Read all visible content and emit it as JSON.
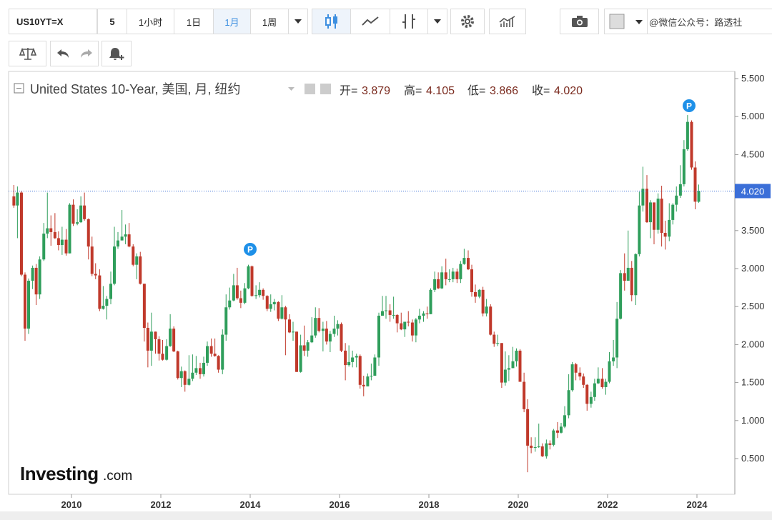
{
  "toolbar": {
    "symbol": "US10YT=X",
    "intervals": [
      "5",
      "1小时",
      "1日",
      "1月",
      "1周"
    ],
    "watermark": "@微信公众号：路透社"
  },
  "chart_data": {
    "type": "candlestick",
    "title": "United States 10-Year, 美国, 月, 纽约",
    "legend_labels": [
      "开=",
      "高=",
      "低=",
      "收="
    ],
    "legend_values": [
      "3.879",
      "4.105",
      "3.866",
      "4.020"
    ],
    "event_labels": [
      "P",
      "P"
    ],
    "logo": "Investing",
    "logo_suffix": ".com",
    "up_color": "#2f9e5b",
    "down_color": "#c0392b",
    "price_line_color": "#3b6fd8",
    "xlim": [
      2008.592,
      2024.848
    ],
    "xticks": [
      2010,
      2012,
      2014,
      2016,
      2018,
      2020,
      2022,
      2024
    ],
    "ylim": [
      0.03,
      5.594
    ],
    "yticks": [
      {
        "value": 0.5,
        "label": "0.500"
      },
      {
        "value": 1,
        "label": "1.000"
      },
      {
        "value": 1.5,
        "label": "1.500"
      },
      {
        "value": 2,
        "label": "2.000"
      },
      {
        "value": 2.5,
        "label": "2.500"
      },
      {
        "value": 3,
        "label": "3.000"
      },
      {
        "value": 3.5,
        "label": "3.500"
      },
      {
        "value": 4,
        "label": "4.000"
      },
      {
        "value": 4.5,
        "label": "4.500"
      },
      {
        "value": 5,
        "label": "5.000"
      },
      {
        "value": 5.5,
        "label": "5.500"
      }
    ],
    "x": [
      2008.71,
      2008.79,
      2008.88,
      2008.96,
      2009.04,
      2009.13,
      2009.21,
      2009.29,
      2009.38,
      2009.46,
      2009.54,
      2009.63,
      2009.71,
      2009.79,
      2009.88,
      2009.96,
      2010.04,
      2010.13,
      2010.21,
      2010.29,
      2010.38,
      2010.46,
      2010.54,
      2010.63,
      2010.71,
      2010.79,
      2010.88,
      2010.96,
      2011.04,
      2011.13,
      2011.21,
      2011.29,
      2011.38,
      2011.46,
      2011.54,
      2011.63,
      2011.71,
      2011.79,
      2011.88,
      2011.96,
      2012.04,
      2012.13,
      2012.21,
      2012.29,
      2012.38,
      2012.46,
      2012.54,
      2012.63,
      2012.71,
      2012.79,
      2012.88,
      2012.96,
      2013.04,
      2013.13,
      2013.21,
      2013.29,
      2013.38,
      2013.46,
      2013.54,
      2013.63,
      2013.71,
      2013.79,
      2013.88,
      2013.96,
      2014.04,
      2014.13,
      2014.21,
      2014.29,
      2014.38,
      2014.46,
      2014.54,
      2014.63,
      2014.71,
      2014.79,
      2014.88,
      2014.96,
      2015.04,
      2015.13,
      2015.21,
      2015.29,
      2015.38,
      2015.46,
      2015.54,
      2015.63,
      2015.71,
      2015.79,
      2015.88,
      2015.96,
      2016.04,
      2016.13,
      2016.21,
      2016.29,
      2016.38,
      2016.46,
      2016.54,
      2016.63,
      2016.71,
      2016.79,
      2016.88,
      2016.96,
      2017.04,
      2017.13,
      2017.21,
      2017.29,
      2017.38,
      2017.46,
      2017.54,
      2017.63,
      2017.71,
      2017.79,
      2017.88,
      2017.96,
      2018.04,
      2018.13,
      2018.21,
      2018.29,
      2018.38,
      2018.46,
      2018.54,
      2018.63,
      2018.71,
      2018.79,
      2018.88,
      2018.96,
      2019.04,
      2019.13,
      2019.21,
      2019.29,
      2019.38,
      2019.46,
      2019.54,
      2019.63,
      2019.71,
      2019.79,
      2019.88,
      2019.96,
      2020.04,
      2020.13,
      2020.21,
      2020.29,
      2020.38,
      2020.46,
      2020.54,
      2020.63,
      2020.71,
      2020.79,
      2020.88,
      2020.96,
      2021.04,
      2021.13,
      2021.21,
      2021.29,
      2021.38,
      2021.46,
      2021.54,
      2021.63,
      2021.71,
      2021.79,
      2021.88,
      2021.96,
      2022.04,
      2022.13,
      2022.21,
      2022.29,
      2022.38,
      2022.46,
      2022.54,
      2022.63,
      2022.71,
      2022.79,
      2022.88,
      2022.96,
      2023.04,
      2023.13,
      2023.21,
      2023.29,
      2023.38,
      2023.46,
      2023.54,
      2023.63,
      2023.71,
      2023.79,
      2023.88,
      2023.96,
      2024.04
    ],
    "candles": [
      [
        3.95,
        4.1,
        3.8,
        3.83
      ],
      [
        3.83,
        4.08,
        3.4,
        4.0
      ],
      [
        4.0,
        4.02,
        2.9,
        2.92
      ],
      [
        2.92,
        2.95,
        2.05,
        2.21
      ],
      [
        2.21,
        2.87,
        2.14,
        2.84
      ],
      [
        2.84,
        3.04,
        2.73,
        3.01
      ],
      [
        3.01,
        3.06,
        2.52,
        2.66
      ],
      [
        2.66,
        3.16,
        2.6,
        3.12
      ],
      [
        3.12,
        3.6,
        3.1,
        3.46
      ],
      [
        3.46,
        4.0,
        3.4,
        3.53
      ],
      [
        3.53,
        3.7,
        3.3,
        3.48
      ],
      [
        3.48,
        3.73,
        3.39,
        3.4
      ],
      [
        3.4,
        3.49,
        3.24,
        3.31
      ],
      [
        3.31,
        3.55,
        3.18,
        3.38
      ],
      [
        3.38,
        3.52,
        3.17,
        3.2
      ],
      [
        3.2,
        3.86,
        3.2,
        3.84
      ],
      [
        3.84,
        3.91,
        3.56,
        3.59
      ],
      [
        3.59,
        3.78,
        3.57,
        3.61
      ],
      [
        3.61,
        3.95,
        3.6,
        3.83
      ],
      [
        3.83,
        4.0,
        3.63,
        3.65
      ],
      [
        3.65,
        3.66,
        3.12,
        3.29
      ],
      [
        3.29,
        3.42,
        2.9,
        2.93
      ],
      [
        2.93,
        3.07,
        2.86,
        2.91
      ],
      [
        2.91,
        2.99,
        2.44,
        2.47
      ],
      [
        2.47,
        2.77,
        2.46,
        2.51
      ],
      [
        2.51,
        2.64,
        2.33,
        2.6
      ],
      [
        2.6,
        2.96,
        2.53,
        2.8
      ],
      [
        2.8,
        3.55,
        2.78,
        3.29
      ],
      [
        3.29,
        3.48,
        3.26,
        3.37
      ],
      [
        3.37,
        3.77,
        3.37,
        3.42
      ],
      [
        3.42,
        3.58,
        3.32,
        3.45
      ],
      [
        3.45,
        3.6,
        3.28,
        3.29
      ],
      [
        3.29,
        3.32,
        3.03,
        3.05
      ],
      [
        3.05,
        3.2,
        2.86,
        3.16
      ],
      [
        3.16,
        3.22,
        2.79,
        2.8
      ],
      [
        2.8,
        2.8,
        2.04,
        2.22
      ],
      [
        2.22,
        2.29,
        1.7,
        1.92
      ],
      [
        1.92,
        2.42,
        1.72,
        2.17
      ],
      [
        2.17,
        2.17,
        1.88,
        2.07
      ],
      [
        2.07,
        2.11,
        1.79,
        1.88
      ],
      [
        1.88,
        2.06,
        1.79,
        1.8
      ],
      [
        1.8,
        2.07,
        1.79,
        1.98
      ],
      [
        1.98,
        2.4,
        1.97,
        2.21
      ],
      [
        2.21,
        2.24,
        1.9,
        1.91
      ],
      [
        1.91,
        1.92,
        1.54,
        1.56
      ],
      [
        1.56,
        1.71,
        1.44,
        1.65
      ],
      [
        1.65,
        1.66,
        1.38,
        1.47
      ],
      [
        1.47,
        1.86,
        1.46,
        1.55
      ],
      [
        1.55,
        1.87,
        1.52,
        1.63
      ],
      [
        1.63,
        1.85,
        1.6,
        1.69
      ],
      [
        1.69,
        1.76,
        1.55,
        1.61
      ],
      [
        1.61,
        1.84,
        1.58,
        1.76
      ],
      [
        1.76,
        2.04,
        1.72,
        1.98
      ],
      [
        1.98,
        2.08,
        1.84,
        1.88
      ],
      [
        1.88,
        2.08,
        1.84,
        1.85
      ],
      [
        1.85,
        1.86,
        1.63,
        1.67
      ],
      [
        1.67,
        2.2,
        1.61,
        2.13
      ],
      [
        2.13,
        2.66,
        2.05,
        2.49
      ],
      [
        2.49,
        2.75,
        2.46,
        2.58
      ],
      [
        2.58,
        2.93,
        2.57,
        2.78
      ],
      [
        2.78,
        3.01,
        2.59,
        2.61
      ],
      [
        2.61,
        2.71,
        2.48,
        2.55
      ],
      [
        2.55,
        2.81,
        2.53,
        2.74
      ],
      [
        2.74,
        3.05,
        2.73,
        3.03
      ],
      [
        3.03,
        3.04,
        2.63,
        2.64
      ],
      [
        2.64,
        2.78,
        2.6,
        2.65
      ],
      [
        2.65,
        2.82,
        2.62,
        2.72
      ],
      [
        2.72,
        2.74,
        2.59,
        2.64
      ],
      [
        2.64,
        2.65,
        2.44,
        2.47
      ],
      [
        2.47,
        2.66,
        2.43,
        2.53
      ],
      [
        2.53,
        2.6,
        2.45,
        2.56
      ],
      [
        2.56,
        2.57,
        2.31,
        2.34
      ],
      [
        2.34,
        2.65,
        2.33,
        2.49
      ],
      [
        2.49,
        2.51,
        1.86,
        2.33
      ],
      [
        2.33,
        2.4,
        2.15,
        2.16
      ],
      [
        2.16,
        2.3,
        2.05,
        2.17
      ],
      [
        2.17,
        2.17,
        1.64,
        1.64
      ],
      [
        1.64,
        2.13,
        1.63,
        1.99
      ],
      [
        1.99,
        2.25,
        1.85,
        1.92
      ],
      [
        1.92,
        2.06,
        1.84,
        2.03
      ],
      [
        2.03,
        2.36,
        2.02,
        2.12
      ],
      [
        2.12,
        2.49,
        2.09,
        2.35
      ],
      [
        2.35,
        2.48,
        2.16,
        2.18
      ],
      [
        2.18,
        2.3,
        1.91,
        2.21
      ],
      [
        2.21,
        2.31,
        2.0,
        2.04
      ],
      [
        2.04,
        2.18,
        1.9,
        2.14
      ],
      [
        2.14,
        2.38,
        2.1,
        2.21
      ],
      [
        2.21,
        2.32,
        2.12,
        2.27
      ],
      [
        2.27,
        2.29,
        1.9,
        1.92
      ],
      [
        1.92,
        2.02,
        1.53,
        1.73
      ],
      [
        1.73,
        1.99,
        1.71,
        1.77
      ],
      [
        1.77,
        1.92,
        1.7,
        1.83
      ],
      [
        1.83,
        1.88,
        1.7,
        1.85
      ],
      [
        1.85,
        1.87,
        1.42,
        1.47
      ],
      [
        1.47,
        1.59,
        1.32,
        1.45
      ],
      [
        1.45,
        1.62,
        1.45,
        1.58
      ],
      [
        1.58,
        1.75,
        1.53,
        1.59
      ],
      [
        1.59,
        1.87,
        1.59,
        1.83
      ],
      [
        1.83,
        2.42,
        1.72,
        2.38
      ],
      [
        2.38,
        2.64,
        2.38,
        2.44
      ],
      [
        2.44,
        2.64,
        2.34,
        2.45
      ],
      [
        2.45,
        2.53,
        2.3,
        2.39
      ],
      [
        2.39,
        2.63,
        2.34,
        2.39
      ],
      [
        2.39,
        2.4,
        2.16,
        2.28
      ],
      [
        2.28,
        2.42,
        2.19,
        2.2
      ],
      [
        2.2,
        2.3,
        2.1,
        2.3
      ],
      [
        2.3,
        2.44,
        2.24,
        2.29
      ],
      [
        2.29,
        2.33,
        2.04,
        2.12
      ],
      [
        2.12,
        2.35,
        2.03,
        2.33
      ],
      [
        2.33,
        2.47,
        2.28,
        2.38
      ],
      [
        2.38,
        2.44,
        2.3,
        2.41
      ],
      [
        2.41,
        2.5,
        2.34,
        2.4
      ],
      [
        2.4,
        2.74,
        2.4,
        2.72
      ],
      [
        2.72,
        2.96,
        2.69,
        2.86
      ],
      [
        2.86,
        2.95,
        2.73,
        2.74
      ],
      [
        2.74,
        3.03,
        2.73,
        2.95
      ],
      [
        2.95,
        3.13,
        2.78,
        2.86
      ],
      [
        2.86,
        2.99,
        2.82,
        2.86
      ],
      [
        2.86,
        3.01,
        2.82,
        2.96
      ],
      [
        2.96,
        3.0,
        2.81,
        2.86
      ],
      [
        2.86,
        3.1,
        2.81,
        3.06
      ],
      [
        3.06,
        3.26,
        3.05,
        3.14
      ],
      [
        3.14,
        3.24,
        2.98,
        2.99
      ],
      [
        2.99,
        3.05,
        2.63,
        2.69
      ],
      [
        2.69,
        2.79,
        2.55,
        2.63
      ],
      [
        2.63,
        2.73,
        2.61,
        2.72
      ],
      [
        2.72,
        2.76,
        2.37,
        2.41
      ],
      [
        2.41,
        2.6,
        2.37,
        2.5
      ],
      [
        2.5,
        2.53,
        2.12,
        2.13
      ],
      [
        2.13,
        2.17,
        1.97,
        2.01
      ],
      [
        2.01,
        2.13,
        1.98,
        2.02
      ],
      [
        2.02,
        2.02,
        1.43,
        1.5
      ],
      [
        1.5,
        1.91,
        1.46,
        1.67
      ],
      [
        1.67,
        1.86,
        1.52,
        1.69
      ],
      [
        1.69,
        1.97,
        1.69,
        1.78
      ],
      [
        1.78,
        1.95,
        1.71,
        1.92
      ],
      [
        1.92,
        1.94,
        1.51,
        1.51
      ],
      [
        1.51,
        1.63,
        1.11,
        1.15
      ],
      [
        1.15,
        1.28,
        0.32,
        0.67
      ],
      [
        0.67,
        0.78,
        0.57,
        0.64
      ],
      [
        0.64,
        0.78,
        0.59,
        0.65
      ],
      [
        0.65,
        0.96,
        0.64,
        0.66
      ],
      [
        0.66,
        0.7,
        0.52,
        0.53
      ],
      [
        0.53,
        0.75,
        0.5,
        0.7
      ],
      [
        0.7,
        0.74,
        0.62,
        0.68
      ],
      [
        0.68,
        0.89,
        0.66,
        0.87
      ],
      [
        0.87,
        0.98,
        0.77,
        0.84
      ],
      [
        0.84,
        0.97,
        0.83,
        0.92
      ],
      [
        0.92,
        1.19,
        0.9,
        1.07
      ],
      [
        1.07,
        1.61,
        1.03,
        1.4
      ],
      [
        1.4,
        1.77,
        1.38,
        1.74
      ],
      [
        1.74,
        1.76,
        1.53,
        1.63
      ],
      [
        1.63,
        1.7,
        1.53,
        1.58
      ],
      [
        1.58,
        1.62,
        1.43,
        1.47
      ],
      [
        1.47,
        1.48,
        1.13,
        1.22
      ],
      [
        1.22,
        1.38,
        1.17,
        1.31
      ],
      [
        1.31,
        1.55,
        1.26,
        1.49
      ],
      [
        1.49,
        1.7,
        1.48,
        1.55
      ],
      [
        1.55,
        1.69,
        1.42,
        1.44
      ],
      [
        1.44,
        1.55,
        1.34,
        1.51
      ],
      [
        1.51,
        1.9,
        1.49,
        1.78
      ],
      [
        1.78,
        2.06,
        1.72,
        1.83
      ],
      [
        1.83,
        2.56,
        1.69,
        2.34
      ],
      [
        2.34,
        2.98,
        2.33,
        2.94
      ],
      [
        2.94,
        3.2,
        2.71,
        2.84
      ],
      [
        2.84,
        3.5,
        2.84,
        3.01
      ],
      [
        3.01,
        3.1,
        2.57,
        2.65
      ],
      [
        2.65,
        3.2,
        2.52,
        3.19
      ],
      [
        3.19,
        4.01,
        3.16,
        3.83
      ],
      [
        3.83,
        4.34,
        3.75,
        4.05
      ],
      [
        4.05,
        4.23,
        3.6,
        3.61
      ],
      [
        3.61,
        3.9,
        3.4,
        3.87
      ],
      [
        3.87,
        3.87,
        3.32,
        3.51
      ],
      [
        3.51,
        3.99,
        3.46,
        3.92
      ],
      [
        3.92,
        4.09,
        3.29,
        3.47
      ],
      [
        3.47,
        3.63,
        3.25,
        3.42
      ],
      [
        3.42,
        3.86,
        3.36,
        3.64
      ],
      [
        3.64,
        3.86,
        3.58,
        3.84
      ],
      [
        3.84,
        4.08,
        3.75,
        3.96
      ],
      [
        3.96,
        4.36,
        3.93,
        4.11
      ],
      [
        4.11,
        4.69,
        4.08,
        4.57
      ],
      [
        4.57,
        5.02,
        4.55,
        4.93
      ],
      [
        4.93,
        4.95,
        4.3,
        4.33
      ],
      [
        4.33,
        4.41,
        3.78,
        3.88
      ],
      [
        3.879,
        4.105,
        3.866,
        4.02
      ]
    ]
  }
}
